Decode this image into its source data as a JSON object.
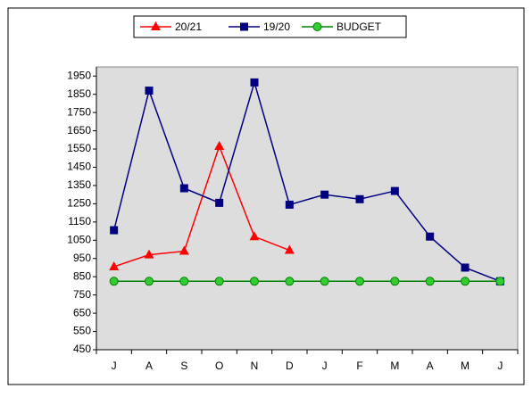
{
  "chart_data": {
    "type": "line",
    "categories": [
      "J",
      "A",
      "S",
      "O",
      "N",
      "D",
      "J",
      "F",
      "M",
      "A",
      "M",
      "J"
    ],
    "series": [
      {
        "name": "20/21",
        "color": "#ff0000",
        "marker": "triangle",
        "values": [
          905,
          970,
          990,
          1565,
          1070,
          995,
          null,
          null,
          null,
          null,
          null,
          null
        ]
      },
      {
        "name": "19/20",
        "color": "#000080",
        "marker": "square",
        "values": [
          1105,
          1870,
          1335,
          1255,
          1915,
          1245,
          1300,
          1275,
          1320,
          1070,
          900,
          825
        ]
      },
      {
        "name": "BUDGET",
        "color": "#008000",
        "marker": "circle",
        "values": [
          825,
          825,
          825,
          825,
          825,
          825,
          825,
          825,
          825,
          825,
          825,
          825
        ]
      }
    ],
    "ylim": [
      450,
      2000
    ],
    "yticks": [
      450,
      550,
      650,
      750,
      850,
      950,
      1050,
      1150,
      1250,
      1350,
      1450,
      1550,
      1650,
      1750,
      1850,
      1950
    ],
    "legend": "top"
  }
}
